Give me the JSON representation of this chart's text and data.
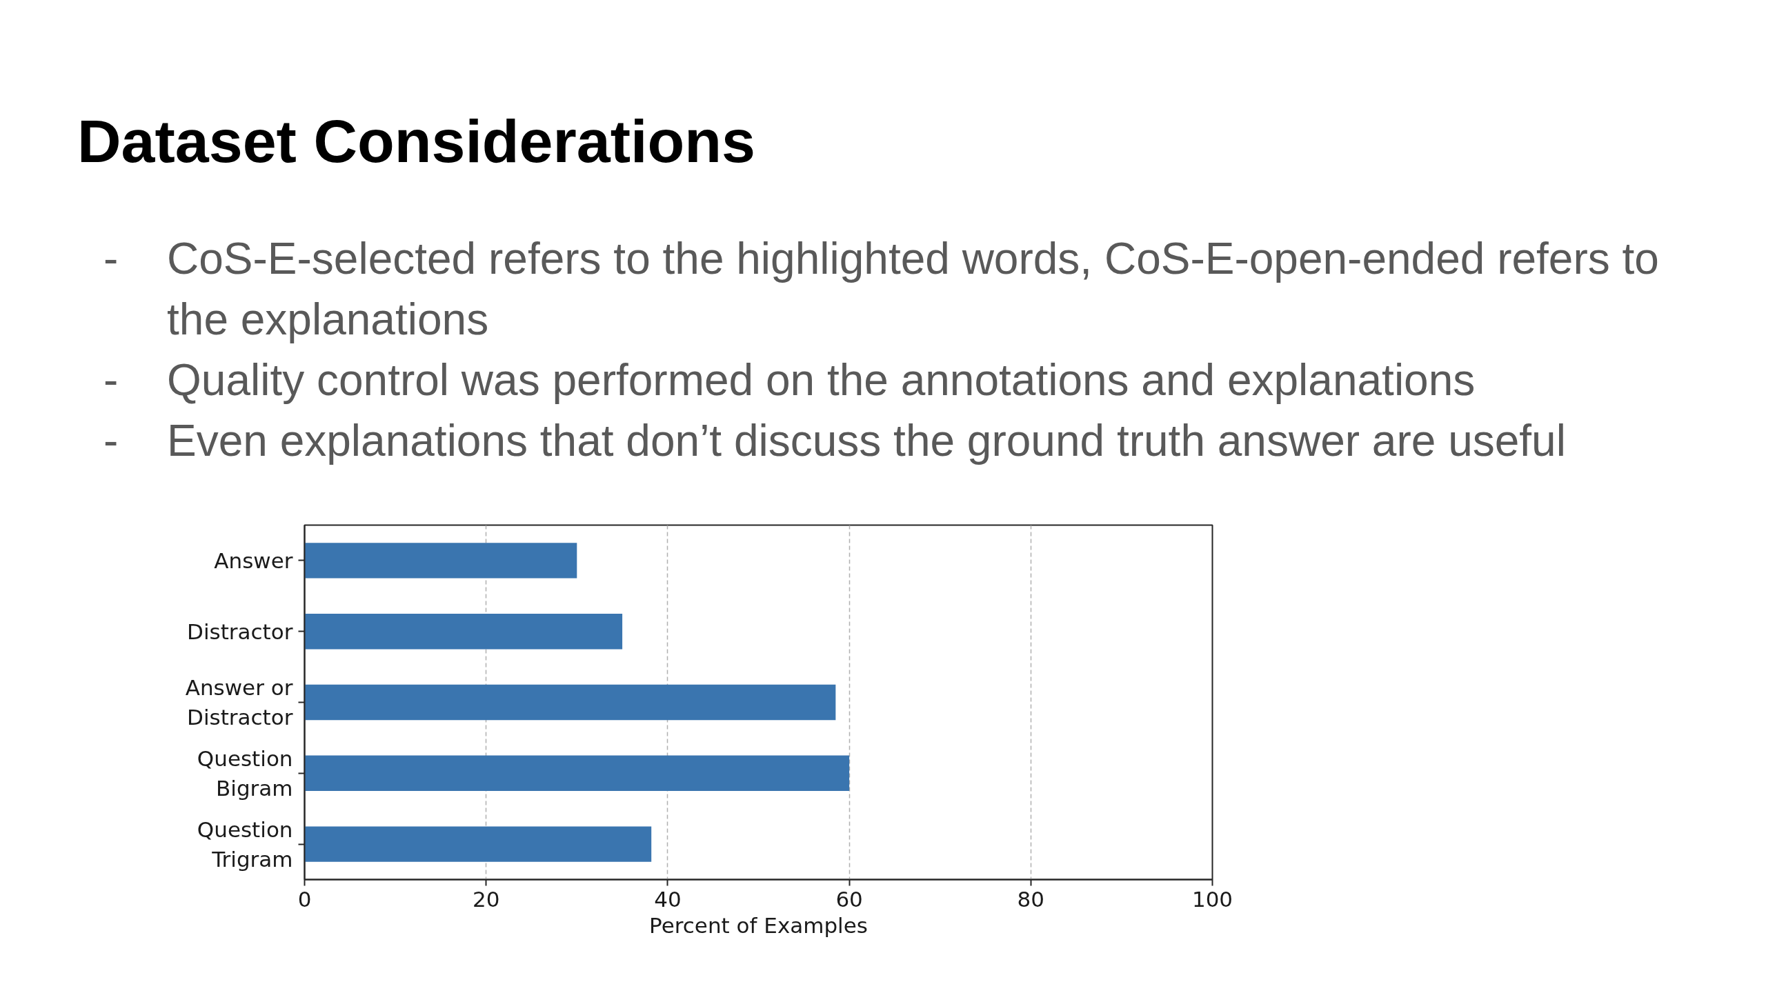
{
  "chart_data": {
    "type": "bar",
    "orientation": "horizontal",
    "title": "Dataset Considerations",
    "annotations": [
      "- CoS-E-selected refers to the highlighted words, CoS-E-open-ended refers to the explanations",
      "- Quality control was performed on the annotations and explanations",
      "- Even explanations that don’t discuss the ground truth answer are useful"
    ],
    "categories": [
      "Answer",
      "Distractor",
      "Answer or Distractor",
      "Question Bigram",
      "Question Trigram"
    ],
    "values": [
      30,
      35,
      58.5,
      60,
      38.2
    ],
    "color": "#3a75af",
    "xlabel": "Percent of Examples",
    "xlim": [
      0,
      100
    ],
    "xticks": [
      0,
      20,
      40,
      60,
      80,
      100
    ],
    "grid": "x"
  }
}
